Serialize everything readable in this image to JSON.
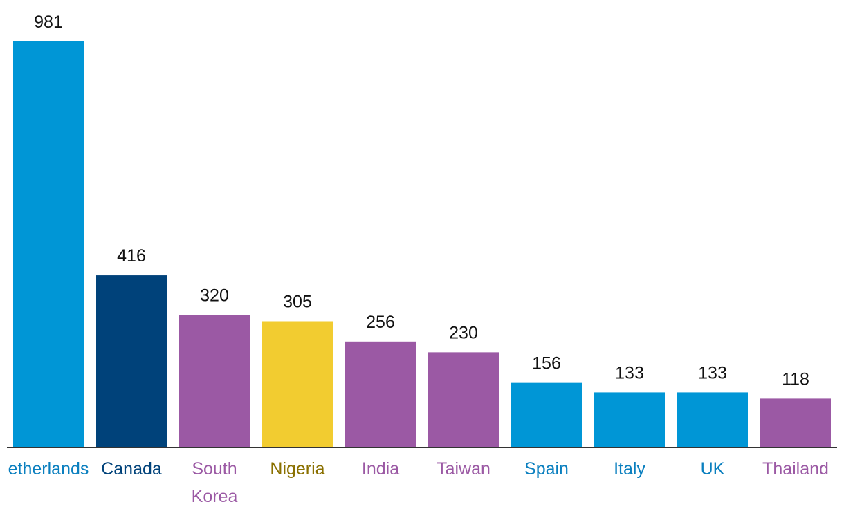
{
  "chart_data": {
    "type": "bar",
    "categories": [
      "etherlands",
      "Canada",
      "South Korea",
      "Nigeria",
      "India",
      "Taiwan",
      "Spain",
      "Italy",
      "UK",
      "Thailand"
    ],
    "category_lines": [
      [
        "etherlands"
      ],
      [
        "Canada"
      ],
      [
        "South",
        "Korea"
      ],
      [
        "Nigeria"
      ],
      [
        "India"
      ],
      [
        "Taiwan"
      ],
      [
        "Spain"
      ],
      [
        "Italy"
      ],
      [
        "UK"
      ],
      [
        "Thailand"
      ]
    ],
    "values": [
      981,
      416,
      320,
      305,
      256,
      230,
      156,
      133,
      133,
      118
    ],
    "value_labels": [
      "981",
      "416",
      "320",
      "305",
      "256",
      "230",
      "156",
      "133",
      "133",
      "118"
    ],
    "bar_colors": [
      "#0096D6",
      "#00427A",
      "#9B59A4",
      "#F2CC30",
      "#9B59A4",
      "#9B59A4",
      "#0096D6",
      "#0096D6",
      "#0096D6",
      "#9B59A4"
    ],
    "label_colors": [
      "#0A7FBF",
      "#00427A",
      "#9B59A4",
      "#8A7000",
      "#9B59A4",
      "#9B59A4",
      "#0A7FBF",
      "#0A7FBF",
      "#0A7FBF",
      "#9B59A4"
    ],
    "axis_color": "#333333",
    "ylim": [
      0,
      981
    ],
    "grid": false,
    "title": "",
    "xlabel": "",
    "ylabel": ""
  }
}
